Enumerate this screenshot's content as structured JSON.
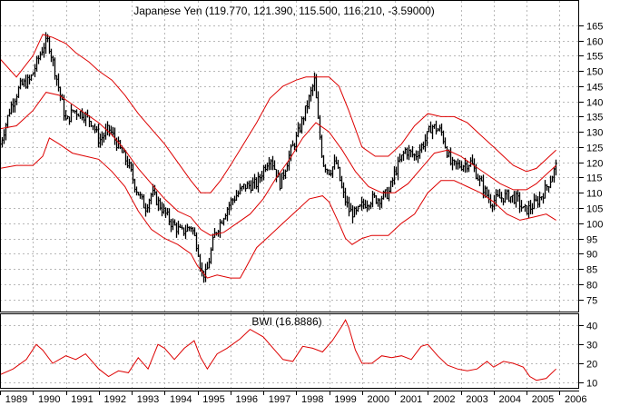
{
  "chart_data": [
    {
      "type": "ohlc",
      "title": "Japanese Yen (119.770, 121.390, 115.500, 116.210, -3.59000)",
      "ylim": [
        71,
        173
      ],
      "yticks": [
        75,
        80,
        85,
        90,
        95,
        100,
        105,
        110,
        115,
        120,
        125,
        130,
        135,
        140,
        145,
        150,
        155,
        160,
        165
      ],
      "x_labels": [
        "1989",
        "1990",
        "1991",
        "1992",
        "1993",
        "1994",
        "1995",
        "1996",
        "1997",
        "1998",
        "1999",
        "2000",
        "2001",
        "2002",
        "2003",
        "2004",
        "2005",
        "2006"
      ],
      "xlim": [
        1989.0,
        2006.6
      ],
      "grid": true,
      "price": {
        "x": [
          1989.0,
          1989.3,
          1989.6,
          1989.9,
          1990.3,
          1990.45,
          1990.7,
          1991.0,
          1991.2,
          1991.5,
          1991.8,
          1992.0,
          1992.3,
          1992.6,
          1992.9,
          1993.1,
          1993.4,
          1993.6,
          1993.9,
          1994.2,
          1994.5,
          1994.8,
          1995.0,
          1995.1,
          1995.25,
          1995.5,
          1995.8,
          1996.0,
          1996.4,
          1996.8,
          1997.0,
          1997.2,
          1997.5,
          1997.8,
          1998.0,
          1998.3,
          1998.55,
          1998.65,
          1998.8,
          1999.0,
          1999.2,
          1999.4,
          1999.6,
          1999.8,
          2000.0,
          2000.3,
          2000.5,
          2000.8,
          2001.0,
          2001.3,
          2001.6,
          2001.9,
          2002.1,
          2002.4,
          2002.7,
          2003.0,
          2003.3,
          2003.6,
          2003.9,
          2004.1,
          2004.4,
          2004.7,
          2004.9,
          2005.1,
          2005.3,
          2005.5,
          2005.7,
          2005.9
        ],
        "y": [
          126,
          138,
          145,
          147,
          158,
          160,
          148,
          133,
          137,
          136,
          133,
          127,
          131,
          125,
          119,
          112,
          105,
          110,
          105,
          100,
          97,
          99,
          92,
          84,
          83,
          96,
          103,
          107,
          112,
          113,
          118,
          122,
          113,
          123,
          128,
          138,
          147,
          134,
          120,
          117,
          120,
          110,
          104,
          103,
          106,
          108,
          108,
          110,
          117,
          124,
          122,
          127,
          132,
          130,
          119,
          119,
          120,
          113,
          107,
          108,
          109,
          108,
          104,
          105,
          107,
          110,
          114,
          119
        ]
      },
      "upper_band": {
        "x": [
          1989.0,
          1989.5,
          1990.0,
          1990.3,
          1990.6,
          1991.0,
          1991.3,
          1991.7,
          1992.0,
          1992.4,
          1992.8,
          1993.2,
          1993.6,
          1994.0,
          1994.4,
          1994.8,
          1995.1,
          1995.4,
          1995.7,
          1996.0,
          1996.4,
          1996.8,
          1997.2,
          1997.6,
          1998.0,
          1998.3,
          1998.6,
          1999.0,
          1999.3,
          1999.6,
          2000.0,
          2000.4,
          2000.8,
          2001.2,
          2001.6,
          2002.0,
          2002.4,
          2002.8,
          2003.2,
          2003.6,
          2004.0,
          2004.3,
          2004.6,
          2005.0,
          2005.3,
          2005.6,
          2005.9
        ],
        "y": [
          154,
          148,
          155,
          162,
          161,
          159,
          156,
          153,
          150,
          147,
          142,
          136,
          131,
          126,
          120,
          114,
          110,
          110,
          114,
          119,
          126,
          133,
          141,
          145,
          147,
          148,
          148,
          148,
          145,
          137,
          125,
          122,
          122,
          126,
          132,
          136,
          135,
          135,
          133,
          129,
          125,
          122,
          119,
          117,
          118,
          121,
          124
        ]
      },
      "middle_band": {
        "x": [
          1989.0,
          1989.5,
          1990.0,
          1990.4,
          1990.8,
          1991.2,
          1991.6,
          1992.0,
          1992.4,
          1992.8,
          1993.2,
          1993.6,
          1994.0,
          1994.4,
          1994.8,
          1995.1,
          1995.4,
          1995.8,
          1996.2,
          1996.6,
          1997.0,
          1997.4,
          1997.8,
          1998.2,
          1998.6,
          1999.0,
          1999.4,
          1999.8,
          2000.2,
          2000.6,
          2001.0,
          2001.4,
          2001.8,
          2002.2,
          2002.6,
          2003.0,
          2003.4,
          2003.8,
          2004.2,
          2004.6,
          2005.0,
          2005.3,
          2005.6,
          2005.9
        ],
        "y": [
          131,
          132,
          137,
          143,
          142,
          139,
          136,
          133,
          129,
          124,
          118,
          113,
          108,
          104,
          102,
          98,
          96,
          97,
          100,
          103,
          108,
          115,
          121,
          128,
          133,
          130,
          124,
          117,
          112,
          110,
          110,
          113,
          118,
          123,
          124,
          122,
          119,
          116,
          113,
          111,
          111,
          113,
          116,
          119
        ]
      },
      "lower_band": {
        "x": [
          1989.0,
          1989.5,
          1990.0,
          1990.3,
          1990.5,
          1990.8,
          1991.2,
          1991.6,
          1992.0,
          1992.4,
          1992.8,
          1993.2,
          1993.6,
          1994.0,
          1994.4,
          1994.8,
          1995.0,
          1995.3,
          1995.6,
          1996.0,
          1996.3,
          1996.5,
          1996.8,
          1997.2,
          1997.6,
          1998.0,
          1998.4,
          1998.8,
          1999.0,
          1999.3,
          1999.5,
          1999.7,
          2000.0,
          2000.3,
          2000.8,
          2001.2,
          2001.6,
          2002.0,
          2002.4,
          2002.8,
          2003.2,
          2003.6,
          2004.0,
          2004.4,
          2004.8,
          2005.2,
          2005.6,
          2005.9
        ],
        "y": [
          118,
          119,
          119,
          122,
          128,
          126,
          123,
          122,
          121,
          117,
          112,
          104,
          98,
          95,
          93,
          90,
          86,
          82,
          83,
          82,
          82,
          86,
          92,
          96,
          100,
          104,
          108,
          109,
          107,
          100,
          95,
          93,
          95,
          96,
          96,
          100,
          103,
          110,
          114,
          114,
          112,
          110,
          107,
          103,
          101,
          102,
          103,
          101
        ]
      }
    },
    {
      "type": "line",
      "title": "BWI (16.8886)",
      "ylim": [
        7,
        46
      ],
      "yticks": [
        10,
        20,
        30,
        40
      ],
      "xlim": [
        1989.0,
        2006.6
      ],
      "grid": true,
      "series": [
        {
          "x": [
            1989.0,
            1989.4,
            1989.8,
            1990.1,
            1990.3,
            1990.6,
            1991.0,
            1991.3,
            1991.6,
            1992.0,
            1992.3,
            1992.6,
            1992.9,
            1993.2,
            1993.5,
            1993.8,
            1994.0,
            1994.3,
            1994.6,
            1994.9,
            1995.1,
            1995.3,
            1995.6,
            1995.9,
            1996.3,
            1996.6,
            1997.0,
            1997.3,
            1997.6,
            1997.9,
            1998.2,
            1998.5,
            1998.8,
            1999.1,
            1999.4,
            1999.5,
            1999.6,
            1999.8,
            2000.0,
            2000.3,
            2000.6,
            2000.9,
            2001.2,
            2001.5,
            2001.8,
            2002.0,
            2002.3,
            2002.6,
            2002.9,
            2003.2,
            2003.5,
            2003.8,
            2004.0,
            2004.3,
            2004.6,
            2004.9,
            2005.1,
            2005.3,
            2005.6,
            2005.9
          ],
          "y": [
            14,
            17,
            22,
            30,
            27,
            20,
            24,
            22,
            25,
            17,
            13,
            16,
            15,
            23,
            17,
            30,
            28,
            22,
            28,
            32,
            23,
            17,
            25,
            28,
            33,
            38,
            34,
            28,
            22,
            21,
            29,
            28,
            26,
            32,
            40,
            43,
            39,
            27,
            20,
            20,
            24,
            23,
            24,
            22,
            29,
            30,
            24,
            19,
            17,
            16,
            17,
            21,
            18,
            21,
            20,
            18,
            13,
            11,
            12,
            17
          ]
        }
      ]
    }
  ]
}
